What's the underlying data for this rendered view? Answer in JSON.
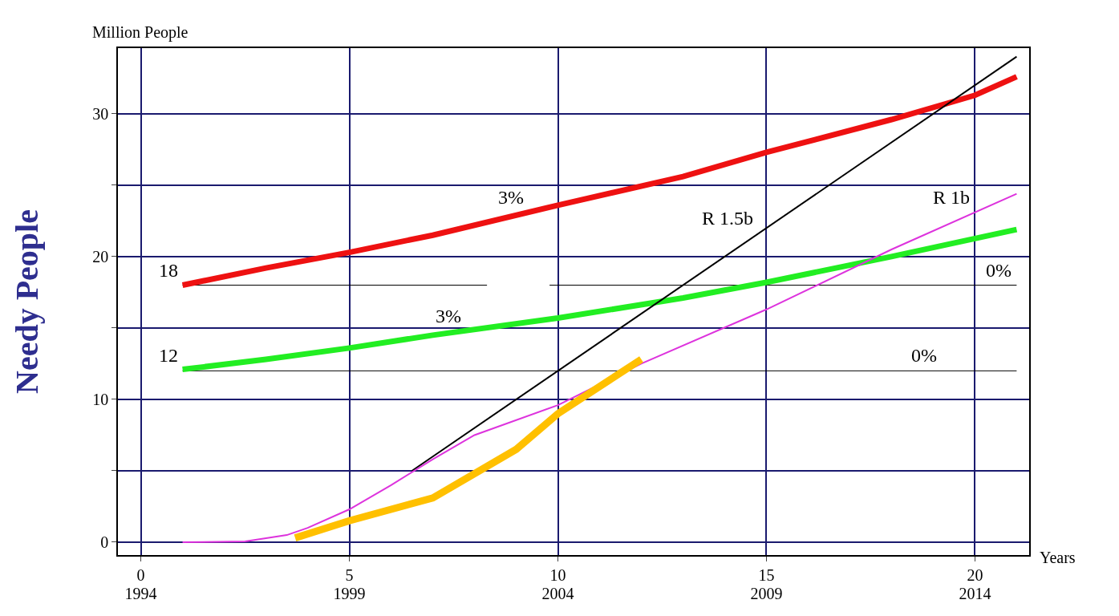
{
  "chart_data": {
    "type": "line",
    "subtitle": "Million People",
    "ylabel": "Needy People",
    "xlabel": "Years",
    "xlim": [
      -0.55,
      21.3
    ],
    "ylim": [
      -0.9,
      34.6
    ],
    "xticks": [
      0,
      5,
      10,
      15,
      20
    ],
    "x2lim": [
      1993.45,
      2015.3
    ],
    "x2ticks": [
      1994,
      1999,
      2004,
      2009,
      2014
    ],
    "yticks": [
      0,
      {
        "value": 5,
        "label": null
      },
      10,
      {
        "value": 15,
        "label": null
      },
      20,
      {
        "value": 25,
        "label": null
      },
      30
    ],
    "grid": true,
    "marker": "none",
    "line_style": "solid",
    "series": [
      {
        "color": "#000000",
        "x": [
          1,
          8.3,
          9,
          9.8,
          21
        ],
        "values": [
          18,
          18,
          null,
          18,
          18
        ]
      },
      {
        "color": "#000000",
        "x": [
          1,
          21
        ],
        "values": [
          12,
          12
        ]
      },
      {
        "color": "#ee1111",
        "x": [
          1,
          3,
          5,
          7,
          10,
          13,
          15,
          18,
          20,
          21
        ],
        "values": [
          18,
          19.2,
          20.3,
          21.5,
          23.6,
          25.6,
          27.3,
          29.6,
          31.3,
          32.6
        ]
      },
      {
        "color": "#22ee22",
        "x": [
          1,
          3,
          5,
          7,
          10,
          13,
          15,
          18,
          21
        ],
        "values": [
          12.1,
          12.8,
          13.6,
          14.5,
          15.7,
          17.1,
          18.2,
          20,
          21.9
        ]
      },
      {
        "color": "#000000",
        "x": [
          6.5,
          21
        ],
        "values": [
          5,
          34
        ]
      },
      {
        "color": "#dd33dd",
        "x": [
          1,
          2.5,
          3.5,
          4,
          5,
          6,
          7,
          8,
          10,
          12,
          15,
          18,
          21
        ],
        "values": [
          0,
          0.05,
          0.5,
          1,
          2.3,
          4,
          5.8,
          7.5,
          9.6,
          12.5,
          16.3,
          20.5,
          24.4
        ]
      },
      {
        "color": "#ffc000",
        "x": [
          3.7,
          5,
          7,
          9,
          10,
          12
        ],
        "values": [
          0.3,
          1.5,
          3.1,
          6.5,
          9,
          12.8
        ]
      }
    ],
    "annotations": [
      {
        "text": "18",
        "x": 1,
        "y": 18
      },
      {
        "text": "12",
        "x": 1,
        "y": 12
      },
      {
        "text": "3%",
        "x": 9.3,
        "y": 23.1
      },
      {
        "text": "3%",
        "x": 7.8,
        "y": 14.8
      },
      {
        "text": "R 1.5b",
        "x": 14.8,
        "y": 21.6
      },
      {
        "text": "R 1b",
        "x": 20,
        "y": 23.1
      },
      {
        "text": "0%",
        "x": 21,
        "y": 18
      },
      {
        "text": "0%",
        "x": 19.2,
        "y": 12
      }
    ]
  }
}
